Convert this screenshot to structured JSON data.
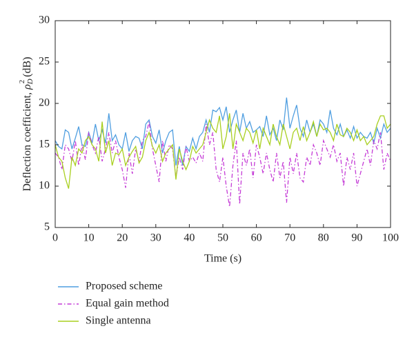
{
  "chart_data": {
    "type": "line",
    "xlabel": "Time (s)",
    "ylabel": {
      "text": "Deflection coefficient, ",
      "symbol": "ρ",
      "sub": "D",
      "sup": "2",
      "unit": " (dB)"
    },
    "xlim": [
      0,
      100
    ],
    "xticks": [
      0,
      10,
      20,
      30,
      40,
      50,
      60,
      70,
      80,
      90,
      100
    ],
    "ylim": [
      5,
      30
    ],
    "yticks": [
      5,
      10,
      15,
      20,
      25,
      30
    ],
    "x": [
      0,
      1,
      2,
      3,
      4,
      5,
      6,
      7,
      8,
      9,
      10,
      11,
      12,
      13,
      14,
      15,
      16,
      17,
      18,
      19,
      20,
      21,
      22,
      23,
      24,
      25,
      26,
      27,
      28,
      29,
      30,
      31,
      32,
      33,
      34,
      35,
      36,
      37,
      38,
      39,
      40,
      41,
      42,
      43,
      44,
      45,
      46,
      47,
      48,
      49,
      50,
      51,
      52,
      53,
      54,
      55,
      56,
      57,
      58,
      59,
      60,
      61,
      62,
      63,
      64,
      65,
      66,
      67,
      68,
      69,
      70,
      71,
      72,
      73,
      74,
      75,
      76,
      77,
      78,
      79,
      80,
      81,
      82,
      83,
      84,
      85,
      86,
      87,
      88,
      89,
      90,
      91,
      92,
      93,
      94,
      95,
      96,
      97,
      98,
      99,
      100
    ],
    "series": [
      {
        "name": "Proposed scheme",
        "color": "#4f9ee0",
        "dash": "solid",
        "values": [
          15.5,
          14.8,
          14.5,
          16.8,
          16.5,
          14.5,
          15.8,
          17.2,
          15.0,
          14.8,
          16.5,
          15.2,
          17.5,
          15.5,
          16.8,
          15.2,
          18.8,
          15.5,
          16.2,
          15.0,
          14.5,
          16.5,
          14.2,
          15.5,
          16.0,
          15.8,
          14.5,
          17.5,
          18.0,
          16.0,
          15.2,
          16.8,
          14.0,
          15.5,
          16.5,
          16.8,
          12.5,
          14.8,
          12.5,
          14.8,
          14.2,
          15.8,
          14.5,
          16.0,
          16.5,
          18.0,
          16.5,
          19.2,
          19.0,
          19.5,
          18.0,
          19.6,
          16.5,
          18.0,
          19.2,
          16.5,
          18.8,
          17.0,
          17.8,
          16.5,
          16.8,
          17.2,
          16.0,
          18.5,
          16.2,
          17.0,
          15.5,
          18.0,
          16.8,
          20.7,
          17.0,
          18.5,
          19.8,
          17.0,
          16.0,
          18.0,
          16.5,
          17.5,
          16.0,
          18.0,
          17.5,
          16.5,
          19.2,
          17.0,
          16.2,
          17.5,
          16.0,
          16.8,
          15.8,
          17.2,
          15.8,
          16.5,
          16.0,
          15.8,
          16.5,
          15.2,
          17.0,
          15.8,
          17.5,
          16.5,
          17.0
        ]
      },
      {
        "name": "Equal gain method",
        "color": "#c43ad6",
        "dash": "dashdot",
        "values": [
          14.0,
          13.5,
          12.0,
          15.0,
          14.5,
          13.0,
          15.5,
          12.5,
          15.0,
          13.2,
          16.5,
          15.0,
          14.0,
          16.0,
          13.0,
          14.5,
          16.5,
          14.0,
          15.5,
          13.5,
          12.0,
          9.8,
          14.0,
          11.5,
          14.5,
          13.0,
          15.5,
          16.0,
          17.8,
          14.5,
          12.5,
          10.5,
          15.5,
          13.0,
          15.0,
          14.5,
          11.0,
          13.5,
          12.0,
          14.8,
          13.0,
          13.5,
          12.8,
          14.0,
          13.0,
          17.5,
          15.0,
          16.5,
          12.0,
          10.5,
          13.5,
          10.0,
          7.5,
          12.5,
          15.5,
          7.8,
          14.0,
          12.5,
          14.5,
          11.0,
          15.0,
          13.5,
          11.5,
          14.0,
          12.0,
          10.5,
          14.0,
          11.0,
          13.0,
          8.0,
          13.5,
          11.5,
          14.0,
          11.0,
          10.5,
          13.5,
          12.5,
          15.0,
          14.0,
          12.5,
          15.5,
          14.5,
          13.5,
          15.0,
          13.0,
          14.0,
          10.0,
          13.5,
          12.0,
          14.0,
          10.0,
          11.5,
          13.0,
          14.5,
          12.5,
          15.5,
          14.5,
          16.5,
          12.0,
          14.0,
          13.0
        ]
      },
      {
        "name": "Single antenna",
        "color": "#a8cf1e",
        "dash": "solid",
        "values": [
          15.0,
          13.5,
          13.0,
          11.0,
          9.7,
          13.5,
          12.5,
          14.5,
          14.0,
          15.5,
          16.0,
          15.0,
          14.5,
          13.0,
          17.8,
          14.0,
          15.5,
          12.5,
          14.0,
          13.8,
          14.5,
          12.5,
          13.5,
          14.2,
          14.8,
          12.8,
          13.5,
          15.5,
          16.5,
          14.8,
          14.0,
          15.0,
          13.0,
          14.0,
          14.5,
          15.0,
          10.8,
          14.5,
          13.0,
          12.0,
          13.0,
          14.8,
          14.0,
          14.5,
          15.0,
          16.5,
          18.0,
          17.0,
          16.5,
          18.5,
          14.5,
          16.0,
          18.8,
          14.5,
          17.5,
          16.5,
          15.5,
          17.0,
          16.5,
          15.2,
          16.8,
          14.5,
          17.0,
          16.0,
          15.0,
          17.5,
          16.0,
          15.0,
          17.5,
          16.0,
          14.5,
          16.5,
          17.0,
          15.5,
          17.2,
          15.5,
          16.5,
          17.8,
          16.0,
          17.5,
          16.8,
          17.0,
          16.5,
          15.5,
          17.5,
          16.2,
          16.0,
          17.0,
          16.5,
          15.5,
          16.8,
          15.5,
          16.0,
          15.0,
          15.5,
          16.0,
          17.5,
          18.5,
          18.5,
          17.0,
          17.5
        ]
      }
    ]
  }
}
